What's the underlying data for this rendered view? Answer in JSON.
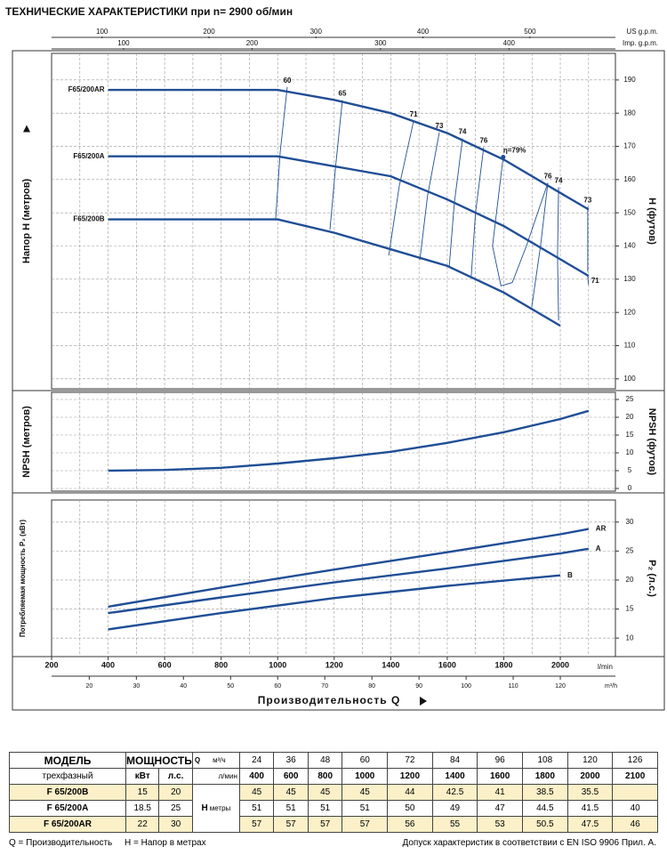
{
  "title": "ТЕХНИЧЕСКИЕ ХАРАКТЕРИСТИКИ при n= 2900 об/мин",
  "top_axes": [
    {
      "label": "US g.p.m.",
      "ticks": [
        100,
        200,
        300,
        400,
        500
      ]
    },
    {
      "label": "Imp. g.p.m.",
      "ticks": [
        100,
        200,
        300,
        400
      ]
    }
  ],
  "chart_data": [
    {
      "type": "line",
      "ylabel": "Напор H  (метров)",
      "y2label": "H  (футов)",
      "xlim": [
        200,
        2195
      ],
      "ylim": [
        97,
        198
      ],
      "yticks": [
        100,
        110,
        120,
        130,
        140,
        150,
        160,
        170,
        180,
        190
      ],
      "grid": true,
      "color": "#1f4e96",
      "x": [
        400,
        600,
        800,
        1000,
        1200,
        1400,
        1600,
        1800,
        2000,
        2100
      ],
      "series": [
        {
          "name": "F65/200AR",
          "values": [
            187,
            187,
            187,
            187,
            184,
            180,
            174,
            166,
            156,
            151
          ]
        },
        {
          "name": "F65/200A",
          "values": [
            167,
            167,
            167,
            167,
            164,
            161,
            154,
            146,
            136,
            131
          ]
        },
        {
          "name": "F65/200B",
          "values": [
            148,
            148,
            148,
            148,
            144,
            139,
            134,
            126,
            116,
            null
          ]
        }
      ],
      "efficiency": [
        {
          "label": "60",
          "x": [
            1034,
            1009,
            993
          ],
          "y": [
            187.9,
            168.4,
            148.3
          ]
        },
        {
          "label": "65",
          "x": [
            1229,
            1205,
            1185
          ],
          "y": [
            183.9,
            164,
            144.9
          ]
        },
        {
          "label": "71",
          "x": [
            1481,
            1430,
            1393
          ],
          "y": [
            177.7,
            158,
            137.1
          ]
        },
        {
          "label": "73",
          "x": [
            1572,
            1530,
            1503
          ],
          "y": [
            174.2,
            155,
            135.8
          ]
        },
        {
          "label": "74",
          "x": [
            1654,
            1625,
            1607
          ],
          "y": [
            172.4,
            153,
            133.7
          ]
        },
        {
          "label": "76",
          "x": [
            1729,
            1700,
            1685
          ],
          "y": [
            169.7,
            150,
            131
          ]
        },
        {
          "label": "η=79%",
          "x": [
            1798,
            1760,
            1790,
            1830,
            1880,
            1956
          ],
          "y": [
            166.8,
            140,
            128,
            129,
            140,
            159
          ]
        },
        {
          "label": "76",
          "x": [
            1956,
            1930,
            1899
          ],
          "y": [
            159,
            140,
            121.6
          ]
        },
        {
          "label": "74",
          "x": [
            1994,
            1990,
            1994
          ],
          "y": [
            157.7,
            137,
            117.6
          ]
        },
        {
          "label": "73",
          "x": [
            2097,
            2097
          ],
          "y": [
            151.8,
            132.3
          ]
        },
        {
          "label": "71",
          "x": [
            2097,
            2100
          ],
          "y": [
            131,
            128.3
          ]
        }
      ]
    },
    {
      "type": "line",
      "ylabel": "NPSH  (метров)",
      "y2label": "NPSH  (футов)",
      "xlim": [
        200,
        2195
      ],
      "ylim": [
        -0.75,
        27
      ],
      "yticks": [
        0,
        5,
        10,
        15,
        20,
        25
      ],
      "grid": true,
      "color": "#1f4e96",
      "x": [
        400,
        600,
        800,
        1000,
        1200,
        1400,
        1600,
        1800,
        2000,
        2100
      ],
      "series": [
        {
          "name": null,
          "values": [
            5,
            5.2,
            5.8,
            7,
            8.5,
            10.3,
            12.8,
            15.8,
            19.5,
            21.8
          ]
        }
      ]
    },
    {
      "type": "line",
      "ylabel": "Потребляемая мощность P₂ (кВт)",
      "y2label": "P₂ (л.с.)",
      "xlim": [
        200,
        2195
      ],
      "ylim": [
        6.8,
        33.8
      ],
      "yticks": [
        10,
        15,
        20,
        25,
        30
      ],
      "grid": true,
      "color": "#1f4e96",
      "x": [
        400,
        800,
        1200,
        1600,
        2000,
        2100
      ],
      "series": [
        {
          "name": "AR",
          "values": [
            15.4,
            18.7,
            21.8,
            24.8,
            27.9,
            28.8
          ]
        },
        {
          "name": "A",
          "values": [
            14.3,
            17,
            19.6,
            22,
            24.6,
            25.4
          ]
        },
        {
          "name": "B",
          "values": [
            11.5,
            14.3,
            16.9,
            19,
            20.8,
            null
          ]
        }
      ],
      "xticks": [
        200,
        400,
        600,
        800,
        1000,
        1200,
        1400,
        1600,
        1800,
        2000
      ],
      "x_unit": "l/min",
      "x2ticks": [
        20,
        30,
        40,
        50,
        60,
        70,
        80,
        90,
        100,
        110,
        120
      ],
      "x2_unit": "m³/h",
      "xlabel": "Производительность  Q"
    }
  ],
  "table": {
    "model": "МОДЕЛЬ",
    "power": "МОЩНОСТЬ",
    "phase": "трехфазный",
    "kw": "кВт",
    "hp": "л.с.",
    "q": "Q",
    "m3h_unit": "м³/ч",
    "lpm_unit": "л/мин",
    "h": "H",
    "h_unit": "метры",
    "m3h": [
      24,
      36,
      48,
      60,
      72,
      84,
      96,
      108,
      120,
      126
    ],
    "lpm": [
      400,
      600,
      800,
      1000,
      1200,
      1400,
      1600,
      1800,
      2000,
      2100
    ],
    "rows": [
      {
        "model": "F 65/200B",
        "kw": 15,
        "hp": 20,
        "h": [
          45,
          45,
          45,
          45,
          44,
          42.5,
          41,
          38.5,
          35.5,
          null
        ]
      },
      {
        "model": "F 65/200A",
        "kw": 18.5,
        "hp": 25,
        "h": [
          51,
          51,
          51,
          51,
          50,
          49,
          47,
          44.5,
          41.5,
          40
        ]
      },
      {
        "model": "F 65/200AR",
        "kw": 22,
        "hp": 30,
        "h": [
          57,
          57,
          57,
          57,
          56,
          55,
          53,
          50.5,
          47.5,
          46
        ]
      }
    ]
  },
  "footer": {
    "q_note": "Q = Производительность",
    "h_note": "H = Напор в метрах",
    "tolerance": "Допуск характеристик в соответствии с EN ISO 9906 Прил.  A."
  }
}
